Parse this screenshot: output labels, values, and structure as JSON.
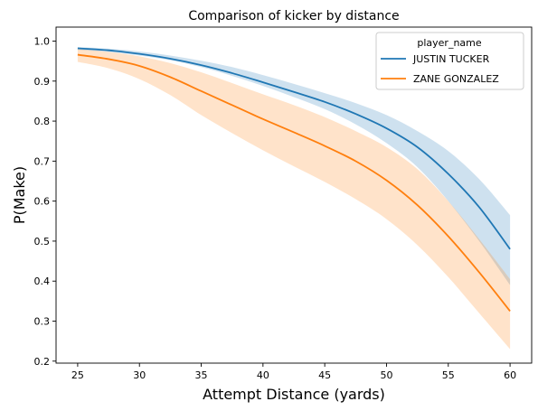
{
  "chart_data": {
    "type": "line",
    "title": "Comparison of kicker by distance",
    "xlabel": "Attempt Distance (yards)",
    "ylabel": "P(Make)",
    "xlim": [
      23.25,
      61.75
    ],
    "ylim": [
      0.195,
      1.035
    ],
    "xticks": [
      25,
      30,
      35,
      40,
      45,
      50,
      55,
      60
    ],
    "yticks": [
      0.2,
      0.3,
      0.4,
      0.5,
      0.6,
      0.7,
      0.8,
      0.9,
      1.0
    ],
    "grid": false,
    "legend": {
      "title": "player_name",
      "position": "top-right"
    },
    "x": [
      25,
      27.5,
      30,
      32.5,
      35,
      37.5,
      40,
      42.5,
      45,
      47.5,
      50,
      52.5,
      55,
      57.5,
      60
    ],
    "series": [
      {
        "name": "JUSTIN TUCKER",
        "color": "#1f77b4",
        "values": [
          0.982,
          0.977,
          0.968,
          0.956,
          0.94,
          0.92,
          0.897,
          0.873,
          0.848,
          0.818,
          0.782,
          0.735,
          0.668,
          0.585,
          0.48
        ],
        "lower": [
          0.978,
          0.973,
          0.964,
          0.952,
          0.935,
          0.913,
          0.888,
          0.86,
          0.83,
          0.792,
          0.745,
          0.685,
          0.6,
          0.5,
          0.39
        ],
        "upper": [
          0.985,
          0.981,
          0.974,
          0.964,
          0.951,
          0.935,
          0.915,
          0.893,
          0.87,
          0.845,
          0.815,
          0.775,
          0.725,
          0.655,
          0.565
        ]
      },
      {
        "name": "ZANE GONZALEZ",
        "color": "#ff7f0e",
        "values": [
          0.966,
          0.955,
          0.938,
          0.91,
          0.875,
          0.84,
          0.805,
          0.772,
          0.738,
          0.7,
          0.652,
          0.59,
          0.512,
          0.422,
          0.325
        ],
        "lower": [
          0.948,
          0.932,
          0.905,
          0.865,
          0.815,
          0.77,
          0.727,
          0.687,
          0.648,
          0.605,
          0.555,
          0.49,
          0.41,
          0.32,
          0.23
        ],
        "upper": [
          0.98,
          0.973,
          0.962,
          0.945,
          0.922,
          0.895,
          0.867,
          0.84,
          0.81,
          0.775,
          0.735,
          0.68,
          0.6,
          0.505,
          0.405
        ]
      }
    ]
  }
}
